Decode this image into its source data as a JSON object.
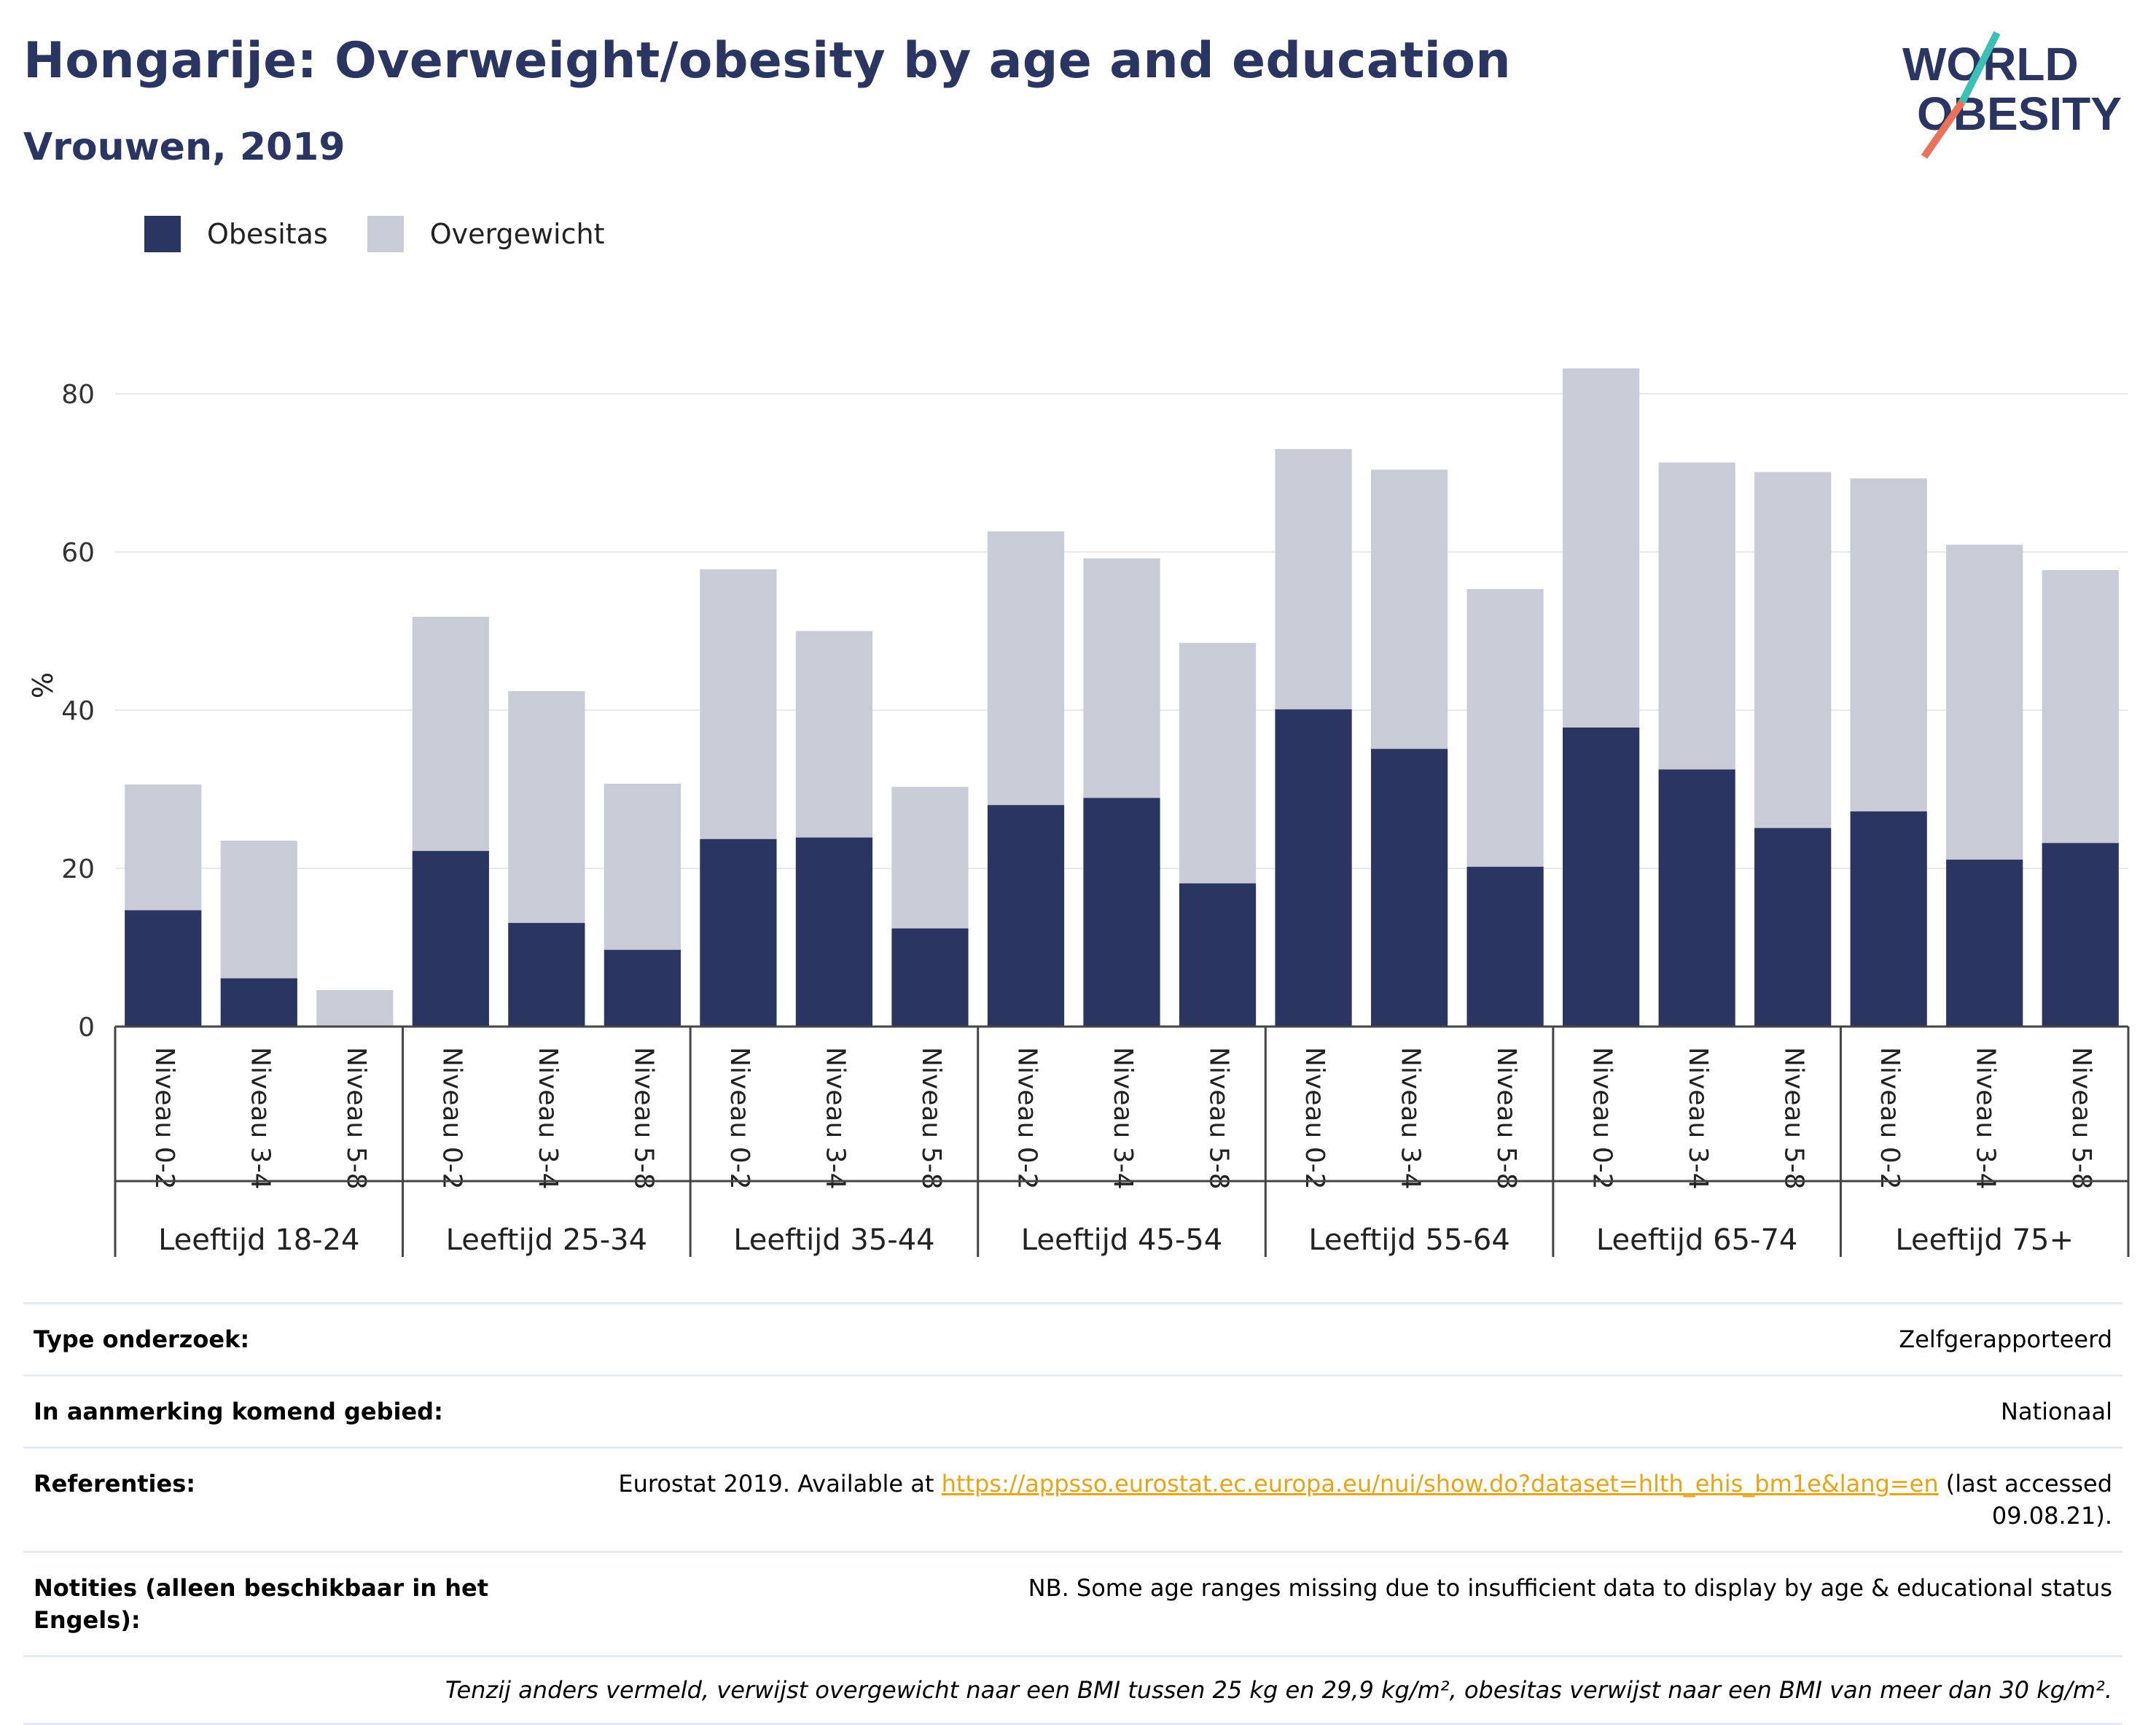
{
  "header": {
    "title": "Hongarije: Overweight/obesity by age and education",
    "subtitle": "Vrouwen, 2019",
    "logo_line1": "WORLD",
    "logo_line2": "OBESITY"
  },
  "legend": {
    "obesity_label": "Obesitas",
    "overweight_label": "Overgewicht"
  },
  "colors": {
    "obesity": "#2a3561",
    "overweight": "#c9cbd6",
    "grid": "#e8e8ee",
    "axis": "#444444",
    "logo_teal": "#3cbfb4",
    "logo_red": "#e8735a"
  },
  "chart_data": {
    "type": "bar",
    "stacked": true,
    "ylabel": "%",
    "ylim": [
      0,
      90
    ],
    "yticks": [
      0,
      20,
      40,
      60,
      80
    ],
    "grid": true,
    "legend_position": "top-left",
    "groups": [
      "Leeftijd 18-24",
      "Leeftijd 25-34",
      "Leeftijd 35-44",
      "Leeftijd 45-54",
      "Leeftijd 55-64",
      "Leeftijd 65-74",
      "Leeftijd 75+"
    ],
    "subcategories": [
      "Niveau 0-2",
      "Niveau 3-4",
      "Niveau 5-8"
    ],
    "series": [
      {
        "name": "Obesitas",
        "values": [
          14.7,
          6.1,
          0,
          22.2,
          13.1,
          9.7,
          23.7,
          23.9,
          12.4,
          28.0,
          28.9,
          18.1,
          40.1,
          35.1,
          20.2,
          37.8,
          32.5,
          25.1,
          27.2,
          21.1,
          23.2
        ]
      },
      {
        "name": "Overgewicht",
        "values": [
          15.9,
          17.4,
          4.6,
          29.6,
          29.3,
          21.0,
          34.1,
          26.1,
          17.9,
          34.6,
          30.3,
          30.4,
          32.9,
          35.3,
          35.1,
          45.4,
          38.8,
          45.0,
          42.1,
          39.8,
          34.5
        ]
      }
    ]
  },
  "info": {
    "survey_type_label": "Type onderzoek:",
    "survey_type_value": "Zelfgerapporteerd",
    "area_label": "In aanmerking komend gebied:",
    "area_value": "Nationaal",
    "refs_label": "Referenties:",
    "refs_prefix": "Eurostat 2019. Available at ",
    "refs_link": "https://appsso.eurostat.ec.europa.eu/nui/show.do?dataset=hlth_ehis_bm1e&lang=en",
    "refs_suffix": " (last accessed 09.08.21).",
    "notes_label": "Notities (alleen beschikbaar in het Engels):",
    "notes_value": "NB. Some age ranges missing due to insufficient data to display by age & educational status",
    "footnote": "Tenzij anders vermeld, verwijst overgewicht naar een BMI tussen 25 kg en 29,9 kg/m², obesitas verwijst naar een BMI van meer dan 30 kg/m²."
  }
}
